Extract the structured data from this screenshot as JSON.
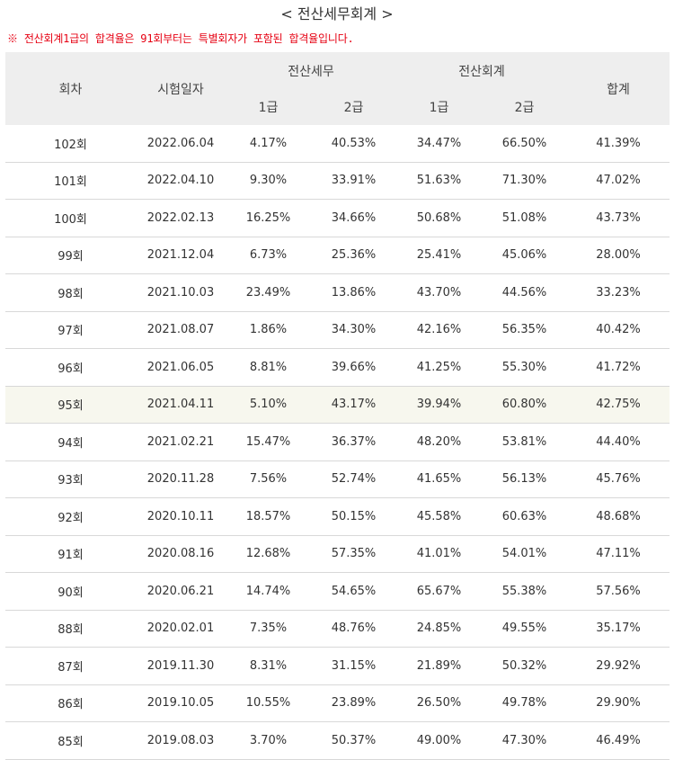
{
  "title": "< 전산세무회계 >",
  "note": "※ 전산회계1급의 합격율은 91회부터는 특별회자가 포함된 합격율입니다.",
  "headers": {
    "round": "회차",
    "date": "시험일자",
    "tax": "전산세무",
    "accounting": "전산회계",
    "total": "합계",
    "grade1": "1급",
    "grade2": "2급"
  },
  "rows": [
    {
      "round": "102회",
      "date": "2022.06.04",
      "tax1": "4.17%",
      "tax2": "40.53%",
      "acc1": "34.47%",
      "acc2": "66.50%",
      "total": "41.39%"
    },
    {
      "round": "101회",
      "date": "2022.04.10",
      "tax1": "9.30%",
      "tax2": "33.91%",
      "acc1": "51.63%",
      "acc2": "71.30%",
      "total": "47.02%"
    },
    {
      "round": "100회",
      "date": "2022.02.13",
      "tax1": "16.25%",
      "tax2": "34.66%",
      "acc1": "50.68%",
      "acc2": "51.08%",
      "total": "43.73%"
    },
    {
      "round": "99회",
      "date": "2021.12.04",
      "tax1": "6.73%",
      "tax2": "25.36%",
      "acc1": "25.41%",
      "acc2": "45.06%",
      "total": "28.00%"
    },
    {
      "round": "98회",
      "date": "2021.10.03",
      "tax1": "23.49%",
      "tax2": "13.86%",
      "acc1": "43.70%",
      "acc2": "44.56%",
      "total": "33.23%"
    },
    {
      "round": "97회",
      "date": "2021.08.07",
      "tax1": "1.86%",
      "tax2": "34.30%",
      "acc1": "42.16%",
      "acc2": "56.35%",
      "total": "40.42%"
    },
    {
      "round": "96회",
      "date": "2021.06.05",
      "tax1": "8.81%",
      "tax2": "39.66%",
      "acc1": "41.25%",
      "acc2": "55.30%",
      "total": "41.72%"
    },
    {
      "round": "95회",
      "date": "2021.04.11",
      "tax1": "5.10%",
      "tax2": "43.17%",
      "acc1": "39.94%",
      "acc2": "60.80%",
      "total": "42.75%"
    },
    {
      "round": "94회",
      "date": "2021.02.21",
      "tax1": "15.47%",
      "tax2": "36.37%",
      "acc1": "48.20%",
      "acc2": "53.81%",
      "total": "44.40%"
    },
    {
      "round": "93회",
      "date": "2020.11.28",
      "tax1": "7.56%",
      "tax2": "52.74%",
      "acc1": "41.65%",
      "acc2": "56.13%",
      "total": "45.76%"
    },
    {
      "round": "92회",
      "date": "2020.10.11",
      "tax1": "18.57%",
      "tax2": "50.15%",
      "acc1": "45.58%",
      "acc2": "60.63%",
      "total": "48.68%"
    },
    {
      "round": "91회",
      "date": "2020.08.16",
      "tax1": "12.68%",
      "tax2": "57.35%",
      "acc1": "41.01%",
      "acc2": "54.01%",
      "total": "47.11%"
    },
    {
      "round": "90회",
      "date": "2020.06.21",
      "tax1": "14.74%",
      "tax2": "54.65%",
      "acc1": "65.67%",
      "acc2": "55.38%",
      "total": "57.56%"
    },
    {
      "round": "88회",
      "date": "2020.02.01",
      "tax1": "7.35%",
      "tax2": "48.76%",
      "acc1": "24.85%",
      "acc2": "49.55%",
      "total": "35.17%"
    },
    {
      "round": "87회",
      "date": "2019.11.30",
      "tax1": "8.31%",
      "tax2": "31.15%",
      "acc1": "21.89%",
      "acc2": "50.32%",
      "total": "29.92%"
    },
    {
      "round": "86회",
      "date": "2019.10.05",
      "tax1": "10.55%",
      "tax2": "23.89%",
      "acc1": "26.50%",
      "acc2": "49.78%",
      "total": "29.90%"
    },
    {
      "round": "85회",
      "date": "2019.08.03",
      "tax1": "3.70%",
      "tax2": "50.37%",
      "acc1": "49.00%",
      "acc2": "47.30%",
      "total": "46.49%"
    }
  ],
  "highlight_row_round": "95회",
  "colors": {
    "note": "#e60012",
    "header_bg": "#eeeeee",
    "highlight_bg": "#f7f7ee",
    "border": "#d8d8d8"
  }
}
